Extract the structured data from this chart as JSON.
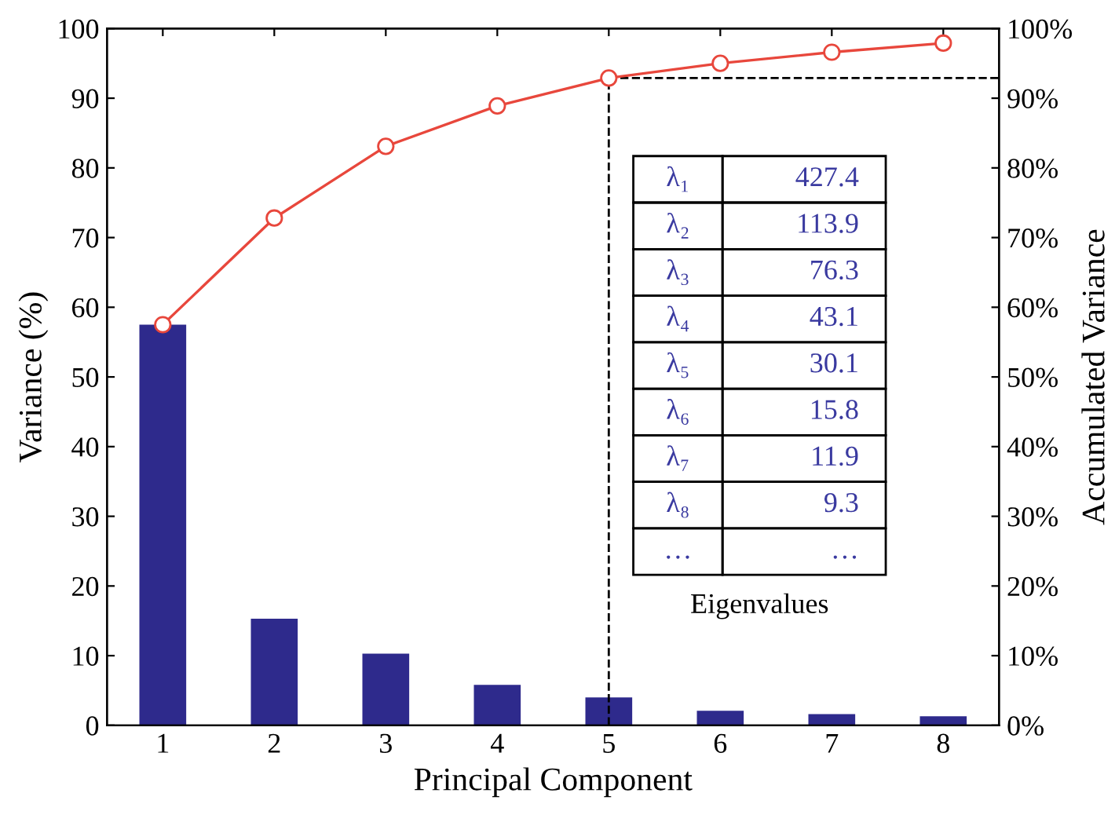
{
  "chart_data": {
    "type": "bar",
    "xlabel": "Principal Component",
    "ylabel": "Variance (%)",
    "y2label": "Accumulated Variance",
    "categories": [
      "1",
      "2",
      "3",
      "4",
      "5",
      "6",
      "7",
      "8"
    ],
    "series": [
      {
        "color": "#2e2a8c",
        "values": [
          57.5,
          15.3,
          10.3,
          5.8,
          4.0,
          2.1,
          1.6,
          1.3
        ]
      },
      {
        "type": "line",
        "axis": "y2",
        "color": "#e8473c",
        "marker": "circle",
        "values": [
          57.5,
          72.8,
          83.1,
          88.9,
          92.9,
          95.0,
          96.6,
          97.9
        ]
      }
    ],
    "ylim": [
      0,
      100
    ],
    "yticks": [
      0,
      10,
      20,
      30,
      40,
      50,
      60,
      70,
      80,
      90,
      100
    ],
    "y2lim": [
      0,
      100
    ],
    "y2ticks": [
      {
        "value": 0,
        "label": "0%"
      },
      {
        "value": 10,
        "label": "10%"
      },
      {
        "value": 20,
        "label": "20%"
      },
      {
        "value": 30,
        "label": "30%"
      },
      {
        "value": 40,
        "label": "40%"
      },
      {
        "value": 50,
        "label": "50%"
      },
      {
        "value": 60,
        "label": "60%"
      },
      {
        "value": 70,
        "label": "70%"
      },
      {
        "value": 80,
        "label": "80%"
      },
      {
        "value": 90,
        "label": "90%"
      },
      {
        "value": 100,
        "label": "100%"
      }
    ],
    "ref_lines": [
      {
        "axis": "x",
        "value": "5",
        "color": "#000000",
        "line_style": "dashed"
      },
      {
        "axis": "y2",
        "value": 92.9,
        "color": "#000000",
        "line_style": "dashed"
      }
    ],
    "annotations": [
      "λ₁",
      "427.4",
      "λ₂",
      "113.9",
      "λ₃",
      "76.3",
      "λ₄",
      "43.1",
      "λ₅",
      "30.1",
      "λ₆",
      "15.8",
      "λ₇",
      "11.9",
      "λ₈",
      "9.3",
      "…",
      "…",
      "Eigenvalues"
    ],
    "grid": false,
    "legend": false
  }
}
